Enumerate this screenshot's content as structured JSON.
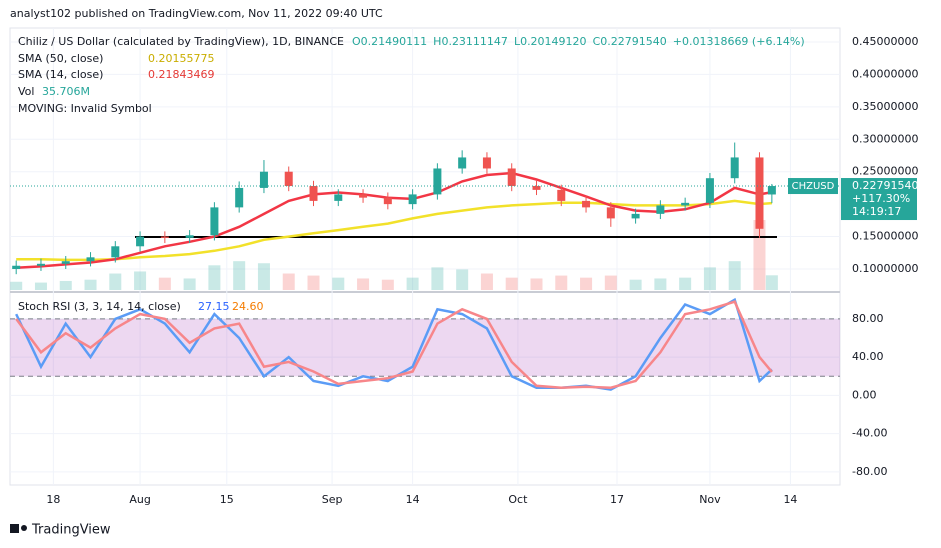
{
  "header": {
    "byline": "analyst102 published on TradingView.com, Nov 11, 2022 09:40 UTC"
  },
  "legend": {
    "symbol": "Chiliz / US Dollar (calculated by TradingView), 1D, BINANCE",
    "ohlc": [
      "O0.21490111",
      "H0.23111147",
      "L0.20149120",
      "C0.22791540"
    ],
    "change": "+0.01318669 (+6.14%)",
    "moving": "MOVING: Invalid Symbol"
  },
  "chart_data": [
    {
      "type": "candlestick",
      "x": [
        0,
        4,
        8,
        12,
        16,
        20,
        24,
        28,
        32,
        36,
        40,
        44,
        48,
        52,
        56,
        60,
        64,
        68,
        72,
        76,
        80,
        84,
        88,
        92,
        96,
        100,
        104,
        108,
        112,
        116,
        120,
        122
      ],
      "open": [
        0.1,
        0.105,
        0.108,
        0.112,
        0.118,
        0.135,
        0.15,
        0.148,
        0.152,
        0.195,
        0.225,
        0.25,
        0.228,
        0.205,
        0.215,
        0.21,
        0.2,
        0.215,
        0.255,
        0.272,
        0.255,
        0.228,
        0.222,
        0.205,
        0.195,
        0.178,
        0.185,
        0.198,
        0.202,
        0.24,
        0.272,
        0.2149
      ],
      "high": [
        0.113,
        0.116,
        0.12,
        0.126,
        0.143,
        0.158,
        0.158,
        0.16,
        0.203,
        0.235,
        0.268,
        0.258,
        0.236,
        0.223,
        0.223,
        0.218,
        0.223,
        0.263,
        0.283,
        0.28,
        0.263,
        0.236,
        0.23,
        0.213,
        0.203,
        0.193,
        0.206,
        0.21,
        0.248,
        0.295,
        0.28,
        0.2311
      ],
      "low": [
        0.092,
        0.097,
        0.1,
        0.104,
        0.11,
        0.127,
        0.14,
        0.14,
        0.144,
        0.187,
        0.217,
        0.22,
        0.197,
        0.197,
        0.202,
        0.192,
        0.192,
        0.207,
        0.247,
        0.247,
        0.22,
        0.214,
        0.197,
        0.187,
        0.165,
        0.17,
        0.177,
        0.19,
        0.194,
        0.232,
        0.148,
        0.2015
      ],
      "close": [
        0.105,
        0.108,
        0.112,
        0.118,
        0.135,
        0.15,
        0.148,
        0.152,
        0.195,
        0.225,
        0.25,
        0.228,
        0.205,
        0.215,
        0.21,
        0.2,
        0.215,
        0.255,
        0.272,
        0.255,
        0.228,
        0.222,
        0.205,
        0.195,
        0.178,
        0.185,
        0.198,
        0.202,
        0.24,
        0.272,
        0.162,
        0.2279154
      ],
      "up_color": "#26a69a",
      "down_color": "#ef5350",
      "series": [
        {
          "name": "SMA (50, close)",
          "color": "#f2e12a",
          "values": [
            0.115,
            0.115,
            0.114,
            0.114,
            0.115,
            0.118,
            0.12,
            0.123,
            0.128,
            0.135,
            0.145,
            0.15,
            0.155,
            0.16,
            0.165,
            0.17,
            0.178,
            0.185,
            0.19,
            0.195,
            0.198,
            0.2,
            0.202,
            0.202,
            0.2,
            0.198,
            0.198,
            0.198,
            0.2,
            0.205,
            0.2,
            0.20155775
          ]
        },
        {
          "name": "SMA (14, close)",
          "color": "#f23645",
          "values": [
            0.102,
            0.104,
            0.107,
            0.11,
            0.115,
            0.125,
            0.135,
            0.142,
            0.15,
            0.165,
            0.185,
            0.205,
            0.215,
            0.218,
            0.215,
            0.21,
            0.208,
            0.218,
            0.235,
            0.245,
            0.248,
            0.238,
            0.225,
            0.212,
            0.198,
            0.19,
            0.188,
            0.192,
            0.202,
            0.225,
            0.215,
            0.21843469
          ]
        }
      ],
      "volume": {
        "name": "Vol",
        "last_label": "35.706M",
        "values": [
          20,
          18,
          22,
          25,
          40,
          45,
          30,
          28,
          60,
          70,
          65,
          40,
          35,
          30,
          28,
          25,
          30,
          55,
          50,
          40,
          30,
          28,
          35,
          30,
          35,
          25,
          28,
          30,
          55,
          70,
          170,
          35.706
        ]
      },
      "ylim": [
        0.0676,
        0.4716
      ],
      "yticks": [
        {
          "value": 0.1,
          "label": "0.10000000"
        },
        {
          "value": 0.15,
          "label": "0.15000000"
        },
        {
          "value": 0.25,
          "label": "0.25000000"
        },
        {
          "value": 0.3,
          "label": "0.30000000"
        },
        {
          "value": 0.35,
          "label": "0.35000000"
        },
        {
          "value": 0.4,
          "label": "0.40000000"
        },
        {
          "value": 0.45,
          "label": "0.45000000"
        }
      ],
      "xlim": [
        -1,
        133
      ],
      "xticks": [
        {
          "value": 6,
          "label": "18"
        },
        {
          "value": 20,
          "label": "Aug"
        },
        {
          "value": 34,
          "label": "15"
        },
        {
          "value": 51,
          "label": "Sep"
        },
        {
          "value": 64,
          "label": "14"
        },
        {
          "value": 81,
          "label": "Oct"
        },
        {
          "value": 97,
          "label": "17"
        },
        {
          "value": 112,
          "label": "Nov"
        },
        {
          "value": 125,
          "label": "14"
        }
      ],
      "price_tag": {
        "symbol": "CHZUSD",
        "price": "0.22791540",
        "change": "+117.30%",
        "countdown": "14:19:17"
      }
    },
    {
      "type": "line",
      "title": "Stoch RSI (3, 3, 14, 14, close)",
      "series": [
        {
          "name": "K",
          "color": "#5b9cf6",
          "values": [
            85,
            30,
            75,
            40,
            80,
            90,
            75,
            45,
            85,
            60,
            20,
            40,
            15,
            10,
            20,
            15,
            30,
            90,
            85,
            70,
            20,
            8,
            8,
            10,
            6,
            20,
            60,
            95,
            85,
            100,
            15,
            27.15
          ]
        },
        {
          "name": "D",
          "color": "#f7868a",
          "last_label": "24.60",
          "values": [
            80,
            45,
            65,
            50,
            70,
            85,
            80,
            55,
            70,
            75,
            30,
            35,
            25,
            12,
            15,
            18,
            25,
            75,
            90,
            80,
            35,
            10,
            8,
            9,
            8,
            15,
            45,
            85,
            90,
            98,
            40,
            24.6
          ]
        }
      ],
      "band": [
        20,
        80
      ],
      "ylim": [
        -93.7,
        106
      ],
      "yticks": [
        {
          "value": 80,
          "label": "80.00"
        },
        {
          "value": 40,
          "label": "40.00"
        },
        {
          "value": 0,
          "label": "0.00"
        },
        {
          "value": -40,
          "label": "-40.00"
        },
        {
          "value": -80,
          "label": "-80.00"
        }
      ]
    }
  ],
  "footer": {
    "brand": "TradingView"
  }
}
